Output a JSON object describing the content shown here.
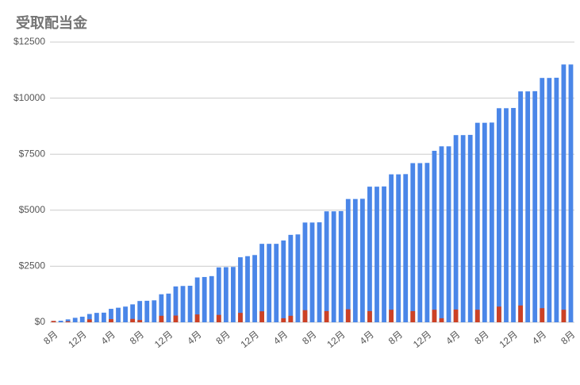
{
  "chart_data": {
    "type": "bar",
    "title": "受取配当金",
    "categories": [
      "8月",
      null,
      null,
      null,
      "12月",
      null,
      null,
      null,
      "4月",
      null,
      null,
      null,
      "8月",
      null,
      null,
      null,
      "12月",
      null,
      null,
      null,
      "4月",
      null,
      null,
      null,
      "8月",
      null,
      null,
      null,
      "12月",
      null,
      null,
      null,
      "4月",
      null,
      null,
      null,
      "8月",
      null,
      null,
      null,
      "12月",
      null,
      null,
      null,
      "4月",
      null,
      null,
      null,
      "8月",
      null,
      null,
      null,
      "12月",
      null,
      null,
      null,
      "4月",
      null,
      null,
      null,
      "8月",
      null,
      null,
      null,
      "12月",
      null,
      null,
      null,
      "4月",
      null,
      null,
      null,
      "8月"
    ],
    "series": [
      {
        "color": "#4a86e8",
        "values": [
          60,
          70,
          130,
          200,
          250,
          370,
          420,
          430,
          600,
          650,
          700,
          800,
          950,
          960,
          980,
          1250,
          1280,
          1600,
          1620,
          1630,
          2000,
          2020,
          2060,
          2450,
          2460,
          2470,
          2900,
          2950,
          3000,
          3500,
          3500,
          3500,
          3650,
          3900,
          3920,
          4450,
          4450,
          4460,
          4950,
          4950,
          4960,
          5500,
          5500,
          5510,
          6050,
          6050,
          6060,
          6600,
          6600,
          6610,
          7100,
          7100,
          7110,
          7650,
          7850,
          7850,
          8350,
          8350,
          8360,
          8900,
          8900,
          8910,
          9550,
          9550,
          9560,
          10300,
          10300,
          10310,
          10900,
          10900,
          10910,
          11500,
          11500
        ]
      },
      {
        "color": "#cc4125",
        "values": [
          60,
          0,
          40,
          0,
          0,
          130,
          0,
          0,
          140,
          0,
          0,
          150,
          100,
          0,
          0,
          290,
          0,
          300,
          0,
          0,
          350,
          0,
          0,
          330,
          0,
          0,
          420,
          0,
          0,
          490,
          0,
          0,
          180,
          290,
          0,
          540,
          0,
          0,
          500,
          0,
          0,
          580,
          0,
          0,
          500,
          0,
          0,
          560,
          0,
          0,
          500,
          0,
          0,
          560,
          180,
          0,
          570,
          0,
          0,
          560,
          0,
          0,
          700,
          0,
          0,
          750,
          0,
          0,
          630,
          0,
          0,
          560,
          0
        ]
      }
    ],
    "ylim": [
      0,
      12500
    ],
    "yticks": [
      {
        "value": 0,
        "label": "$0"
      },
      {
        "value": 2500,
        "label": "$2500"
      },
      {
        "value": 5000,
        "label": "$5000"
      },
      {
        "value": 7500,
        "label": "$7500"
      },
      {
        "value": 10000,
        "label": "$10000"
      },
      {
        "value": 12500,
        "label": "$12500"
      }
    ],
    "grid": true
  }
}
